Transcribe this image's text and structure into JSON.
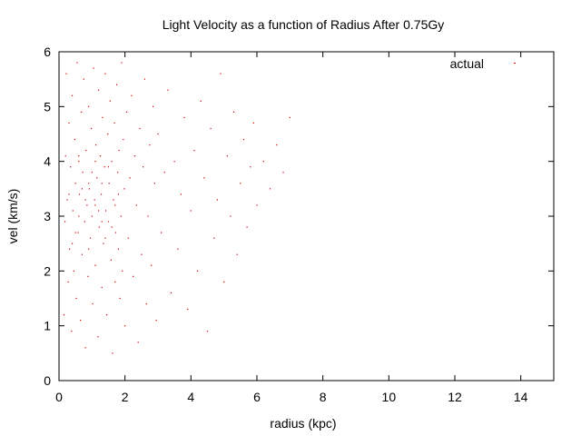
{
  "chart_data": {
    "type": "scatter",
    "title": "Light Velocity as a function of Radius After 0.75Gy",
    "xlabel": "radius (kpc)",
    "ylabel": "vel (km/s)",
    "xlim": [
      0,
      15
    ],
    "ylim": [
      0,
      6
    ],
    "x_ticks": [
      0,
      2,
      4,
      6,
      8,
      10,
      12,
      14
    ],
    "y_ticks": [
      0,
      1,
      2,
      3,
      4,
      5,
      6
    ],
    "grid": false,
    "legend": {
      "position": "top-right"
    },
    "series": [
      {
        "name": "actual",
        "color": "#cc0000",
        "points": [
          [
            0.15,
            1.2
          ],
          [
            0.18,
            2.9
          ],
          [
            0.2,
            4.1
          ],
          [
            0.22,
            5.6
          ],
          [
            0.25,
            3.3
          ],
          [
            0.28,
            1.8
          ],
          [
            0.3,
            4.7
          ],
          [
            0.32,
            2.4
          ],
          [
            0.35,
            3.9
          ],
          [
            0.38,
            0.9
          ],
          [
            0.4,
            5.2
          ],
          [
            0.42,
            3.1
          ],
          [
            0.45,
            2.0
          ],
          [
            0.48,
            4.4
          ],
          [
            0.5,
            3.6
          ],
          [
            0.52,
            1.5
          ],
          [
            0.55,
            5.8
          ],
          [
            0.58,
            2.7
          ],
          [
            0.6,
            4.0
          ],
          [
            0.62,
            3.4
          ],
          [
            0.65,
            1.1
          ],
          [
            0.68,
            4.9
          ],
          [
            0.7,
            2.3
          ],
          [
            0.72,
            3.8
          ],
          [
            0.75,
            5.5
          ],
          [
            0.78,
            2.9
          ],
          [
            0.8,
            0.6
          ],
          [
            0.82,
            4.2
          ],
          [
            0.85,
            3.2
          ],
          [
            0.88,
            1.9
          ],
          [
            0.9,
            5.0
          ],
          [
            0.92,
            3.5
          ],
          [
            0.95,
            2.6
          ],
          [
            0.98,
            4.6
          ],
          [
            1.0,
            3.0
          ],
          [
            1.02,
            1.4
          ],
          [
            1.05,
            5.7
          ],
          [
            1.08,
            3.3
          ],
          [
            1.1,
            2.1
          ],
          [
            1.12,
            4.3
          ],
          [
            1.15,
            3.7
          ],
          [
            1.18,
            0.8
          ],
          [
            1.2,
            5.3
          ],
          [
            1.22,
            2.8
          ],
          [
            1.25,
            4.1
          ],
          [
            1.28,
            3.4
          ],
          [
            1.3,
            1.7
          ],
          [
            1.32,
            4.8
          ],
          [
            1.35,
            2.5
          ],
          [
            1.38,
            3.9
          ],
          [
            1.4,
            5.6
          ],
          [
            1.42,
            3.1
          ],
          [
            1.45,
            1.2
          ],
          [
            1.48,
            4.5
          ],
          [
            1.5,
            2.9
          ],
          [
            1.52,
            3.6
          ],
          [
            1.55,
            5.1
          ],
          [
            1.58,
            2.2
          ],
          [
            1.6,
            4.0
          ],
          [
            1.62,
            0.5
          ],
          [
            1.65,
            3.3
          ],
          [
            1.68,
            4.7
          ],
          [
            1.7,
            1.8
          ],
          [
            1.72,
            2.7
          ],
          [
            1.75,
            5.4
          ],
          [
            1.78,
            3.8
          ],
          [
            1.8,
            2.4
          ],
          [
            1.82,
            4.2
          ],
          [
            1.85,
            1.5
          ],
          [
            1.88,
            3.0
          ],
          [
            1.9,
            5.8
          ],
          [
            1.92,
            2.0
          ],
          [
            1.95,
            4.4
          ],
          [
            1.98,
            3.5
          ],
          [
            2.0,
            1.0
          ],
          [
            2.05,
            4.9
          ],
          [
            2.1,
            2.6
          ],
          [
            2.15,
            3.7
          ],
          [
            2.2,
            5.2
          ],
          [
            2.25,
            1.9
          ],
          [
            2.3,
            4.1
          ],
          [
            2.35,
            3.2
          ],
          [
            2.4,
            0.7
          ],
          [
            2.45,
            4.6
          ],
          [
            2.5,
            2.3
          ],
          [
            2.55,
            3.9
          ],
          [
            2.6,
            5.5
          ],
          [
            2.65,
            1.4
          ],
          [
            2.7,
            3.0
          ],
          [
            2.75,
            4.3
          ],
          [
            2.8,
            2.1
          ],
          [
            2.85,
            5.0
          ],
          [
            2.9,
            3.6
          ],
          [
            2.95,
            1.1
          ],
          [
            3.0,
            4.5
          ],
          [
            3.1,
            2.7
          ],
          [
            3.2,
            3.8
          ],
          [
            3.3,
            5.3
          ],
          [
            3.4,
            1.6
          ],
          [
            3.5,
            4.0
          ],
          [
            3.6,
            2.4
          ],
          [
            3.7,
            3.4
          ],
          [
            3.8,
            4.8
          ],
          [
            3.9,
            1.3
          ],
          [
            4.0,
            3.1
          ],
          [
            4.1,
            4.2
          ],
          [
            4.2,
            2.0
          ],
          [
            4.3,
            5.1
          ],
          [
            4.4,
            3.7
          ],
          [
            4.5,
            0.9
          ],
          [
            4.6,
            4.6
          ],
          [
            4.7,
            2.6
          ],
          [
            4.8,
            3.3
          ],
          [
            4.9,
            5.6
          ],
          [
            5.0,
            1.8
          ],
          [
            5.1,
            4.1
          ],
          [
            5.2,
            3.0
          ],
          [
            5.3,
            4.9
          ],
          [
            5.4,
            2.3
          ],
          [
            5.5,
            3.6
          ],
          [
            5.6,
            4.4
          ],
          [
            5.7,
            2.8
          ],
          [
            5.8,
            3.9
          ],
          [
            5.9,
            4.7
          ],
          [
            6.0,
            3.2
          ],
          [
            6.2,
            4.0
          ],
          [
            6.4,
            3.5
          ],
          [
            6.6,
            4.3
          ],
          [
            6.8,
            3.8
          ],
          [
            7.0,
            4.8
          ],
          [
            0.3,
            3.4
          ],
          [
            0.6,
            3.0
          ],
          [
            0.9,
            3.6
          ],
          [
            1.1,
            3.2
          ],
          [
            1.3,
            2.9
          ],
          [
            0.7,
            3.5
          ],
          [
            1.0,
            3.8
          ],
          [
            1.2,
            3.1
          ],
          [
            0.5,
            2.7
          ],
          [
            0.8,
            3.3
          ],
          [
            1.4,
            2.6
          ],
          [
            1.6,
            2.8
          ],
          [
            1.8,
            3.4
          ],
          [
            0.4,
            2.5
          ],
          [
            1.5,
            3.9
          ],
          [
            1.7,
            3.2
          ],
          [
            0.6,
            4.1
          ],
          [
            0.9,
            2.4
          ],
          [
            1.1,
            4.0
          ],
          [
            1.3,
            3.6
          ]
        ]
      }
    ]
  }
}
